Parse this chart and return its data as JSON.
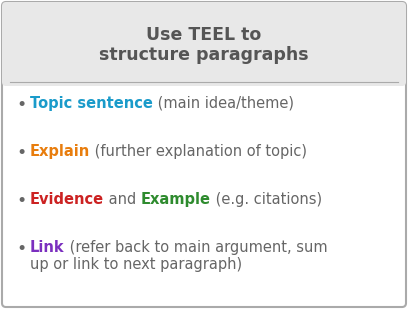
{
  "title_line1": "Use TEEL to",
  "title_line2": "structure paragraphs",
  "title_bg": "#e8e8e8",
  "body_bg": "#ffffff",
  "border_color": "#aaaaaa",
  "title_color": "#555555",
  "bullet_color": "#666666",
  "bullet": "•",
  "items": [
    {
      "parts": [
        {
          "text": "Topic sentence",
          "color": "#1a9bca",
          "bold": true
        },
        {
          "text": " (main idea/theme)",
          "color": "#666666",
          "bold": false
        }
      ],
      "line2": null
    },
    {
      "parts": [
        {
          "text": "Explain",
          "color": "#e87d0d",
          "bold": true
        },
        {
          "text": " (further explanation of topic)",
          "color": "#666666",
          "bold": false
        }
      ],
      "line2": null
    },
    {
      "parts": [
        {
          "text": "Evidence",
          "color": "#cc2222",
          "bold": true
        },
        {
          "text": " and ",
          "color": "#666666",
          "bold": false
        },
        {
          "text": "Example",
          "color": "#2e8b2e",
          "bold": true
        },
        {
          "text": " (e.g. citations)",
          "color": "#666666",
          "bold": false
        }
      ],
      "line2": null
    },
    {
      "parts": [
        {
          "text": "Link",
          "color": "#7b2fbf",
          "bold": true
        },
        {
          "text": " (refer back to main argument, sum",
          "color": "#666666",
          "bold": false
        }
      ],
      "line2": [
        {
          "text": "up or link to next paragraph)",
          "color": "#666666",
          "bold": false
        }
      ]
    }
  ],
  "title_fontsize": 12.5,
  "body_fontsize": 10.5,
  "fig_width": 4.08,
  "fig_height": 3.09,
  "dpi": 100
}
